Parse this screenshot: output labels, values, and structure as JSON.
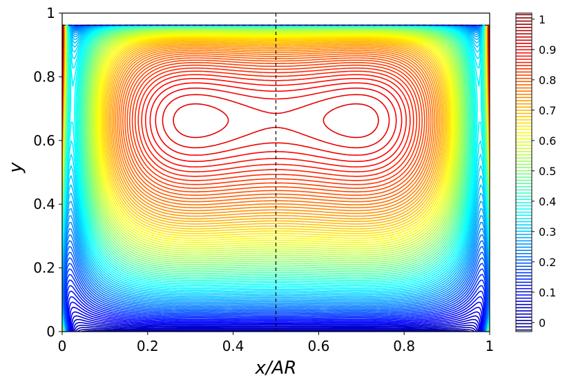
{
  "chart_data": {
    "type": "contour",
    "title": "",
    "xlabel": "x/AR",
    "ylabel": "y",
    "xlim": [
      0,
      1
    ],
    "ylim": [
      0,
      1
    ],
    "x_ticks": [
      0,
      0.2,
      0.4,
      0.6,
      0.8,
      1
    ],
    "x_tick_labels": [
      "0",
      "0.2",
      "0.4",
      "0.6",
      "0.8",
      "1"
    ],
    "y_ticks": [
      0,
      0.2,
      0.4,
      0.6,
      0.8,
      1
    ],
    "y_tick_labels": [
      "0",
      "0.2",
      "0.4",
      "0.6",
      "0.8",
      "1"
    ],
    "reference_lines": [
      {
        "orientation": "vertical",
        "value": 0.5,
        "style": "dashed",
        "color": "#000000"
      },
      {
        "orientation": "horizontal",
        "value": 0.962,
        "style": "dashed",
        "color": "#000000"
      }
    ],
    "field_domain": {
      "x": [
        0,
        1
      ],
      "y": [
        0,
        0.962
      ]
    },
    "contour_levels": {
      "min": -0.03,
      "max": 1.02,
      "count": 100
    },
    "colormap": "jet",
    "colorbar": {
      "ticks": [
        0,
        0.1,
        0.2,
        0.3,
        0.4,
        0.5,
        0.6,
        0.7,
        0.8,
        0.9,
        1
      ],
      "tick_labels": [
        "0",
        "0.1",
        "0.2",
        "0.3",
        "0.4",
        "0.5",
        "0.6",
        "0.7",
        "0.8",
        "0.9",
        "1"
      ],
      "range": [
        -0.03,
        1.02
      ]
    }
  }
}
